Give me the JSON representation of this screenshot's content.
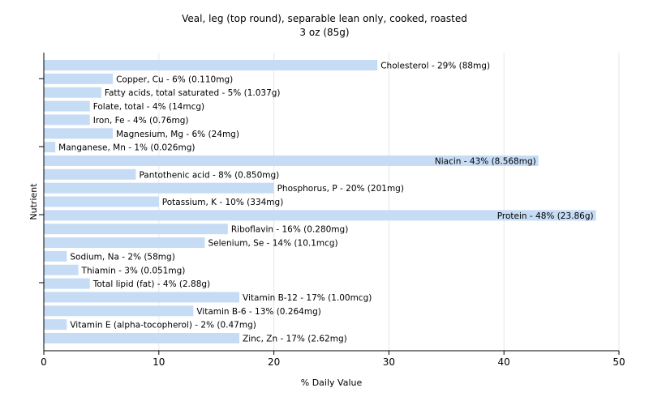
{
  "chart_data": {
    "type": "bar",
    "orientation": "horizontal",
    "title": "Veal, leg (top round), separable lean only, cooked, roasted",
    "subtitle": "3 oz (85g)",
    "xlabel": "% Daily Value",
    "ylabel": "Nutrient",
    "xlim": [
      0,
      50
    ],
    "xticks": [
      0,
      10,
      20,
      30,
      40,
      50
    ],
    "grid": true,
    "bar_color": "#c6dcf5",
    "categories": [
      "Cholesterol",
      "Copper, Cu",
      "Fatty acids, total saturated",
      "Folate, total",
      "Iron, Fe",
      "Magnesium, Mg",
      "Manganese, Mn",
      "Niacin",
      "Pantothenic acid",
      "Phosphorus, P",
      "Potassium, K",
      "Protein",
      "Riboflavin",
      "Selenium, Se",
      "Sodium, Na",
      "Thiamin",
      "Total lipid (fat)",
      "Vitamin B-12",
      "Vitamin B-6",
      "Vitamin E (alpha-tocopherol)",
      "Zinc, Zn"
    ],
    "values": [
      29,
      6,
      5,
      4,
      4,
      6,
      1,
      43,
      8,
      20,
      10,
      48,
      16,
      14,
      2,
      3,
      4,
      17,
      13,
      2,
      17
    ],
    "labels": [
      "Cholesterol - 29% (88mg)",
      "Copper, Cu - 6% (0.110mg)",
      "Fatty acids, total saturated - 5% (1.037g)",
      "Folate, total - 4% (14mcg)",
      "Iron, Fe - 4% (0.76mg)",
      "Magnesium, Mg - 6% (24mg)",
      "Manganese, Mn - 1% (0.026mg)",
      "Niacin - 43% (8.568mg)",
      "Pantothenic acid - 8% (0.850mg)",
      "Phosphorus, P - 20% (201mg)",
      "Potassium, K - 10% (334mg)",
      "Protein - 48% (23.86g)",
      "Riboflavin - 16% (0.280mg)",
      "Selenium, Se - 14% (10.1mcg)",
      "Sodium, Na - 2% (58mg)",
      "Thiamin - 3% (0.051mg)",
      "Total lipid (fat) - 4% (2.88g)",
      "Vitamin B-12 - 17% (1.00mcg)",
      "Vitamin B-6 - 13% (0.264mg)",
      "Vitamin E (alpha-tocopherol) - 2% (0.47mg)",
      "Zinc, Zn - 17% (2.62mg)"
    ]
  }
}
